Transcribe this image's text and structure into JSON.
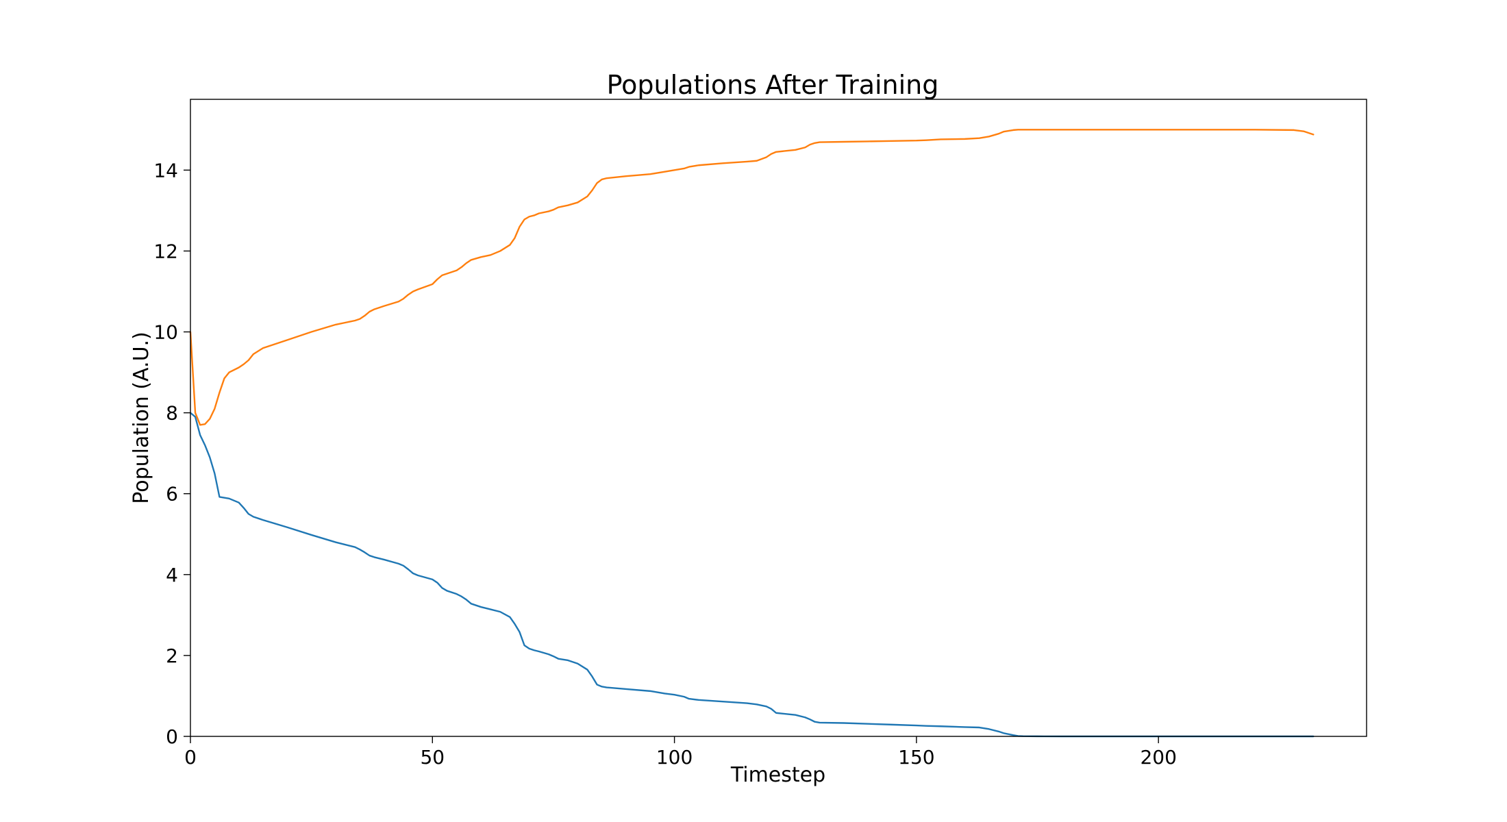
{
  "chart_data": {
    "type": "line",
    "title": "Populations After Training",
    "xlabel": "Timestep",
    "ylabel": "Population (A.U.)",
    "xlim": [
      0,
      243
    ],
    "ylim": [
      0,
      15.75
    ],
    "xticks": [
      0,
      50,
      100,
      150,
      200
    ],
    "yticks": [
      0,
      2,
      4,
      6,
      8,
      10,
      12,
      14
    ],
    "grid": false,
    "series": [
      {
        "color": "#1f77b4",
        "x": [
          0,
          1,
          2,
          3,
          4,
          5,
          6,
          8,
          10,
          11,
          12,
          13,
          15,
          20,
          25,
          30,
          34,
          35,
          36,
          37,
          38,
          40,
          43,
          44,
          45,
          46,
          47,
          50,
          51,
          52,
          53,
          55,
          56,
          57,
          58,
          60,
          62,
          64,
          66,
          67,
          68,
          69,
          70,
          71,
          72,
          74,
          75,
          76,
          78,
          80,
          82,
          83,
          84,
          85,
          86,
          90,
          95,
          98,
          100,
          102,
          103,
          105,
          110,
          115,
          117,
          119,
          120,
          121,
          125,
          127,
          128,
          129,
          130,
          135,
          140,
          145,
          150,
          152,
          155,
          160,
          163,
          165,
          167,
          168,
          170,
          171,
          172,
          175,
          180,
          190,
          200,
          210,
          220,
          230,
          232
        ],
        "y": [
          8.0,
          7.9,
          7.45,
          7.2,
          6.9,
          6.5,
          5.92,
          5.88,
          5.78,
          5.65,
          5.5,
          5.43,
          5.35,
          5.17,
          4.98,
          4.8,
          4.68,
          4.62,
          4.55,
          4.47,
          4.43,
          4.37,
          4.27,
          4.22,
          4.13,
          4.03,
          3.98,
          3.88,
          3.8,
          3.67,
          3.6,
          3.52,
          3.46,
          3.38,
          3.28,
          3.2,
          3.14,
          3.08,
          2.95,
          2.78,
          2.58,
          2.25,
          2.17,
          2.13,
          2.1,
          2.03,
          1.98,
          1.92,
          1.88,
          1.8,
          1.65,
          1.48,
          1.28,
          1.23,
          1.21,
          1.17,
          1.12,
          1.06,
          1.03,
          0.98,
          0.93,
          0.9,
          0.86,
          0.82,
          0.79,
          0.74,
          0.68,
          0.58,
          0.53,
          0.47,
          0.42,
          0.36,
          0.34,
          0.33,
          0.31,
          0.29,
          0.27,
          0.26,
          0.25,
          0.23,
          0.22,
          0.18,
          0.12,
          0.08,
          0.03,
          0.01,
          0.005,
          0.002,
          0.0,
          0.0,
          0.0,
          0.0,
          0.0,
          0.0,
          0.0
        ]
      },
      {
        "color": "#ff7f0e",
        "x": [
          0,
          1,
          2,
          3,
          4,
          5,
          6,
          7,
          8,
          10,
          11,
          12,
          13,
          15,
          20,
          25,
          30,
          34,
          35,
          36,
          37,
          38,
          40,
          43,
          44,
          45,
          46,
          47,
          50,
          51,
          52,
          53,
          55,
          56,
          57,
          58,
          60,
          62,
          64,
          66,
          67,
          68,
          69,
          70,
          71,
          72,
          74,
          75,
          76,
          78,
          80,
          82,
          83,
          84,
          85,
          86,
          90,
          95,
          98,
          100,
          102,
          103,
          105,
          110,
          115,
          117,
          119,
          120,
          121,
          125,
          127,
          128,
          129,
          130,
          135,
          140,
          145,
          150,
          152,
          155,
          160,
          163,
          165,
          167,
          168,
          170,
          171,
          172,
          175,
          180,
          190,
          200,
          210,
          220,
          228,
          230,
          232
        ],
        "y": [
          10.0,
          8.0,
          7.7,
          7.72,
          7.85,
          8.1,
          8.5,
          8.85,
          9.0,
          9.12,
          9.2,
          9.3,
          9.45,
          9.6,
          9.8,
          10.0,
          10.18,
          10.28,
          10.32,
          10.4,
          10.5,
          10.56,
          10.64,
          10.75,
          10.82,
          10.92,
          11.0,
          11.05,
          11.18,
          11.3,
          11.4,
          11.44,
          11.52,
          11.6,
          11.7,
          11.78,
          11.85,
          11.9,
          12.0,
          12.15,
          12.32,
          12.6,
          12.78,
          12.85,
          12.88,
          12.93,
          12.98,
          13.02,
          13.08,
          13.13,
          13.2,
          13.35,
          13.5,
          13.68,
          13.77,
          13.8,
          13.85,
          13.9,
          13.96,
          14.0,
          14.04,
          14.08,
          14.12,
          14.17,
          14.21,
          14.23,
          14.32,
          14.4,
          14.45,
          14.5,
          14.56,
          14.63,
          14.67,
          14.69,
          14.7,
          14.71,
          14.72,
          14.73,
          14.74,
          14.76,
          14.77,
          14.79,
          14.83,
          14.9,
          14.95,
          14.99,
          15.0,
          15.0,
          15.0,
          15.0,
          15.0,
          15.0,
          15.0,
          15.0,
          14.99,
          14.96,
          14.88
        ]
      }
    ]
  }
}
